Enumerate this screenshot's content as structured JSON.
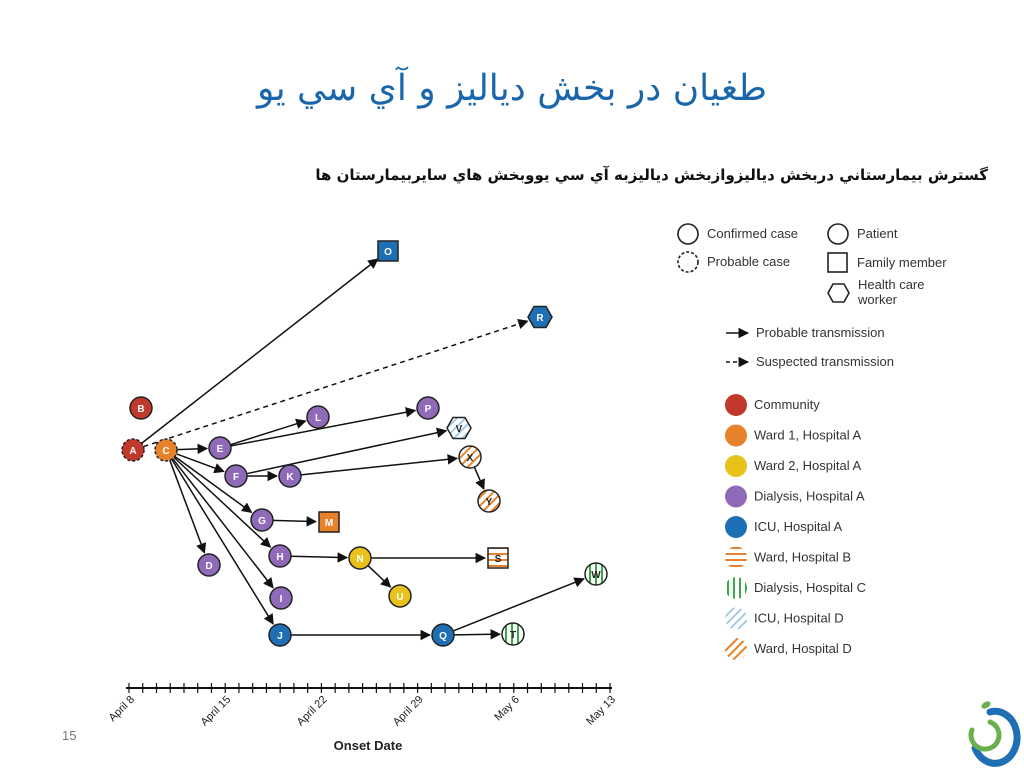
{
  "slide": {
    "title": "طغيان در بخش دياليز و آي سي يو",
    "subtitle": "گسترش بيمارستاني دربخش دياليزوازبخش دياليزبه آي سي يووبخش هاي سايربيمارستان ها",
    "page_number": "15"
  },
  "colors": {
    "community": "#c0392b",
    "ward1_hospital_a": "#e8822a",
    "ward2_hospital_a": "#e8c21a",
    "dialysis_hospital_a": "#8e6ab8",
    "icu_hospital_a": "#1f6fb5",
    "hatch_ward_b": "#e8822a",
    "hatch_dialysis_c": "#3aa845",
    "hatch_icu_d": "#8fc3e6",
    "hatch_ward_d": "#e8822a",
    "logo_blue": "#1f6fb5",
    "logo_green": "#6ab04c"
  },
  "axis": {
    "label": "Onset Date",
    "ticks": [
      "April 8",
      "April 15",
      "April 22",
      "April 29",
      "May 6",
      "May 13"
    ]
  },
  "legend": {
    "shapes": {
      "confirmed_case": "Confirmed case",
      "probable_case": "Probable case",
      "patient": "Patient",
      "family_member": "Family member",
      "hcw_line1": "Health care",
      "hcw_line2": "worker"
    },
    "lines": {
      "probable_transmission": "Probable transmission",
      "suspected_transmission": "Suspected transmission"
    },
    "locations": [
      {
        "label": "Community",
        "type": "community"
      },
      {
        "label": "Ward 1, Hospital A",
        "type": "ward1"
      },
      {
        "label": "Ward 2, Hospital A",
        "type": "ward2"
      },
      {
        "label": "Dialysis, Hospital A",
        "type": "dialysis"
      },
      {
        "label": "ICU, Hospital A",
        "type": "icu"
      },
      {
        "label": "Ward, Hospital B",
        "type": "hatch_ward_b"
      },
      {
        "label": "Dialysis, Hospital C",
        "type": "hatch_dialysis_c"
      },
      {
        "label": "ICU, Hospital D",
        "type": "hatch_icu_d"
      },
      {
        "label": "Ward, Hospital D",
        "type": "hatch_ward_d"
      }
    ]
  },
  "nodes": {
    "A": {
      "label": "A",
      "fill": "community",
      "shape": "circle",
      "probable": true
    },
    "B": {
      "label": "B",
      "fill": "community",
      "shape": "circle"
    },
    "C": {
      "label": "C",
      "fill": "ward1",
      "shape": "circle",
      "probable": true
    },
    "D": {
      "label": "D",
      "fill": "dialysis",
      "shape": "circle"
    },
    "E": {
      "label": "E",
      "fill": "dialysis",
      "shape": "circle"
    },
    "F": {
      "label": "F",
      "fill": "dialysis",
      "shape": "circle"
    },
    "G": {
      "label": "G",
      "fill": "dialysis",
      "shape": "circle"
    },
    "H": {
      "label": "H",
      "fill": "dialysis",
      "shape": "circle"
    },
    "I": {
      "label": "I",
      "fill": "dialysis",
      "shape": "circle"
    },
    "J": {
      "label": "J",
      "fill": "icu",
      "shape": "circle"
    },
    "K": {
      "label": "K",
      "fill": "dialysis",
      "shape": "circle"
    },
    "L": {
      "label": "L",
      "fill": "dialysis",
      "shape": "circle"
    },
    "M": {
      "label": "M",
      "fill": "ward1",
      "shape": "square"
    },
    "N": {
      "label": "N",
      "fill": "ward2",
      "shape": "circle"
    },
    "O": {
      "label": "O",
      "fill": "icu",
      "shape": "square"
    },
    "P": {
      "label": "P",
      "fill": "dialysis",
      "shape": "circle"
    },
    "Q": {
      "label": "Q",
      "fill": "icu",
      "shape": "circle"
    },
    "R": {
      "label": "R",
      "fill": "icu",
      "shape": "hexagon"
    },
    "S": {
      "label": "S",
      "fill": "hatch_ward_b",
      "shape": "square"
    },
    "T": {
      "label": "T",
      "fill": "hatch_dialysis_c",
      "shape": "circle"
    },
    "U": {
      "label": "U",
      "fill": "ward2",
      "shape": "circle"
    },
    "V": {
      "label": "V",
      "fill": "hatch_icu_d",
      "shape": "hexagon"
    },
    "W": {
      "label": "W",
      "fill": "hatch_dialysis_c",
      "shape": "circle"
    },
    "X": {
      "label": "X",
      "fill": "hatch_ward_d",
      "shape": "circle"
    },
    "Y": {
      "label": "Y",
      "fill": "hatch_ward_d",
      "shape": "circle"
    }
  },
  "edges": [
    {
      "from": "A",
      "to": "O",
      "style": "probable"
    },
    {
      "from": "A",
      "to": "R",
      "style": "suspected"
    },
    {
      "from": "C",
      "to": "E",
      "style": "probable"
    },
    {
      "from": "C",
      "to": "F",
      "style": "probable"
    },
    {
      "from": "C",
      "to": "G",
      "style": "probable"
    },
    {
      "from": "C",
      "to": "H",
      "style": "probable"
    },
    {
      "from": "C",
      "to": "I",
      "style": "probable"
    },
    {
      "from": "C",
      "to": "J",
      "style": "probable"
    },
    {
      "from": "C",
      "to": "D",
      "style": "probable"
    },
    {
      "from": "E",
      "to": "L",
      "style": "probable"
    },
    {
      "from": "E",
      "to": "P",
      "style": "probable"
    },
    {
      "from": "F",
      "to": "V",
      "style": "probable"
    },
    {
      "from": "F",
      "to": "K",
      "style": "probable"
    },
    {
      "from": "K",
      "to": "X",
      "style": "probable"
    },
    {
      "from": "X",
      "to": "Y",
      "style": "probable"
    },
    {
      "from": "G",
      "to": "M",
      "style": "probable"
    },
    {
      "from": "H",
      "to": "N",
      "style": "probable"
    },
    {
      "from": "N",
      "to": "S",
      "style": "probable"
    },
    {
      "from": "N",
      "to": "U",
      "style": "probable"
    },
    {
      "from": "J",
      "to": "Q",
      "style": "probable"
    },
    {
      "from": "Q",
      "to": "T",
      "style": "probable"
    },
    {
      "from": "Q",
      "to": "W",
      "style": "probable"
    }
  ]
}
